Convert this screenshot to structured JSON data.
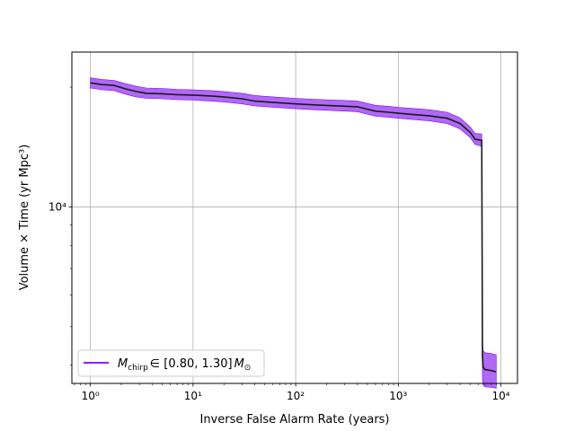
{
  "chart_data": {
    "type": "line",
    "title": "",
    "xlabel": "Inverse False Alarm Rate (years)",
    "ylabel": "Volume × Time (yr Mpc³)",
    "xscale": "log",
    "yscale": "log",
    "xlim": [
      0.66,
      14500
    ],
    "ylim": [
      3600,
      24500
    ],
    "grid": true,
    "legend_position": "lower-left",
    "x_ticks": [
      {
        "value": 1,
        "label": "10⁰"
      },
      {
        "value": 10,
        "label": "10¹"
      },
      {
        "value": 100,
        "label": "10²"
      },
      {
        "value": 1000,
        "label": "10³"
      },
      {
        "value": 10000,
        "label": "10⁴"
      }
    ],
    "y_ticks": [
      {
        "value": 10000,
        "label": "10⁴"
      }
    ],
    "series": [
      {
        "name": "M_chirp ∈ [0.80, 1.30] M⊙",
        "color": "#7f00ff",
        "band_color": "#a24ff2",
        "x": [
          1.0,
          1.3,
          1.7,
          2.2,
          2.8,
          3.5,
          5.0,
          7.0,
          10.0,
          15.0,
          20.0,
          30.0,
          40.0,
          60.0,
          100.0,
          150.0,
          250.0,
          400.0,
          600.0,
          800.0,
          1000.0,
          1500.0,
          2000.0,
          3000.0,
          4000.0,
          5000.0,
          5600.0,
          6500.0,
          6600.0,
          6700.0,
          7000.0,
          8000.0,
          9000.0
        ],
        "y": [
          20500,
          20300,
          20200,
          19800,
          19500,
          19300,
          19250,
          19150,
          19100,
          19000,
          18900,
          18700,
          18450,
          18300,
          18150,
          18050,
          17950,
          17850,
          17400,
          17300,
          17200,
          17050,
          16950,
          16700,
          16200,
          15400,
          14800,
          14700,
          4200,
          3950,
          3900,
          3880,
          3850
        ],
        "lower": [
          19900,
          19700,
          19600,
          19200,
          18900,
          18750,
          18700,
          18600,
          18550,
          18450,
          18350,
          18150,
          17950,
          17800,
          17650,
          17550,
          17450,
          17350,
          16900,
          16800,
          16700,
          16550,
          16450,
          16200,
          15700,
          14950,
          14350,
          14200,
          3700,
          3560,
          3530,
          3520,
          3500
        ],
        "upper": [
          21100,
          20900,
          20800,
          20400,
          20100,
          19900,
          19850,
          19750,
          19700,
          19600,
          19500,
          19300,
          19050,
          18900,
          18750,
          18650,
          18550,
          18450,
          18000,
          17900,
          17800,
          17650,
          17550,
          17300,
          16750,
          15900,
          15300,
          15250,
          4700,
          4350,
          4300,
          4280,
          4250
        ]
      }
    ]
  },
  "legend": {
    "prefix": "M",
    "subscript": "chirp",
    "range": "∈ [0.80, 1.30]",
    "unit": "M",
    "unit_subscript": "⊙"
  }
}
